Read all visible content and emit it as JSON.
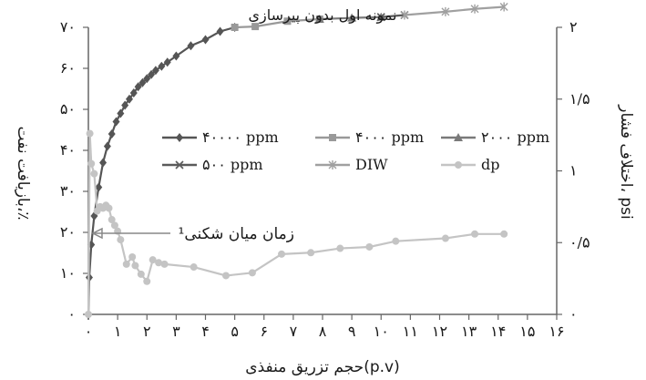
{
  "chart_data": {
    "type": "line",
    "title": "نمونه اول بدون پیرسازی",
    "xlabel": "حجم تزریق منفذی(p.v)",
    "ylabel_left": "بازیافت نفت،٪",
    "ylabel_right": "اختلاف فشار، psi",
    "x_range": [
      0,
      16
    ],
    "y_left_range": [
      0,
      70
    ],
    "y_right_range": [
      0,
      2
    ],
    "x_ticks": [
      "۰",
      "۱",
      "۲",
      "۳",
      "۴",
      "۵",
      "۶",
      "۷",
      "۸",
      "۹",
      "۱۰",
      "۱۱",
      "۱۲",
      "۱۳",
      "۱۴",
      "۱۵",
      "۱۶"
    ],
    "y_left_ticks": [
      "۰",
      "۱۰",
      "۲۰",
      "۳۰",
      "۴۰",
      "۵۰",
      "۶۰",
      "۷۰"
    ],
    "y_right_ticks": [
      "۰",
      "۰/۵",
      "۱",
      "۱/۵",
      "۲"
    ],
    "legend_position": "center",
    "annotation": {
      "text": "زمان میان شکنی¹",
      "x": 1.3,
      "y": 20
    },
    "series": [
      {
        "name": "۴۰۰۰۰ ppm",
        "axis": "left",
        "color": "#555555",
        "marker": "diamond",
        "x": [
          0,
          0.03,
          0.1,
          0.2,
          0.35,
          0.5,
          0.65,
          0.8,
          0.95,
          1.1,
          1.25,
          1.4,
          1.55,
          1.7,
          1.85,
          2.0,
          2.15,
          2.3,
          2.5,
          2.7,
          3.0,
          3.5,
          4.0,
          4.5,
          5.0
        ],
        "y": [
          0,
          9,
          17,
          24,
          31,
          37,
          41,
          44,
          47,
          49,
          51,
          52.5,
          54,
          55.5,
          56.5,
          57.5,
          58.5,
          59.5,
          60.5,
          61.5,
          63,
          65.5,
          67,
          69,
          70
        ]
      },
      {
        "name": "۴۰۰۰ ppm",
        "axis": "left",
        "color": "#999999",
        "marker": "square",
        "x": [
          5.0,
          5.7,
          6.8,
          7.9
        ],
        "y": [
          70,
          70.2,
          71.5,
          72
        ]
      },
      {
        "name": "۲۰۰۰ ppm",
        "axis": "left",
        "color": "#7a7a7a",
        "marker": "triangle",
        "x": [
          7.9,
          9.0,
          10.0
        ],
        "y": [
          72,
          72.3,
          72.5
        ]
      },
      {
        "name": "۵۰۰ ppm",
        "axis": "left",
        "color": "#5a5a5a",
        "marker": "x",
        "x": [
          10.0,
          10.8
        ],
        "y": [
          72.5,
          73
        ]
      },
      {
        "name": "DIW",
        "axis": "left",
        "color": "#a0a0a0",
        "marker": "star",
        "x": [
          10.8,
          12.2,
          13.2,
          14.2
        ],
        "y": [
          73,
          73.8,
          74.5,
          75
        ]
      },
      {
        "name": "dp",
        "axis": "right",
        "color": "#c4c4c4",
        "marker": "circle",
        "x": [
          0,
          0.05,
          0.1,
          0.2,
          0.3,
          0.4,
          0.5,
          0.6,
          0.7,
          0.8,
          0.9,
          1.0,
          1.1,
          1.3,
          1.5,
          1.6,
          1.8,
          2.0,
          2.2,
          2.4,
          2.6,
          3.6,
          4.7,
          5.6,
          6.6,
          7.6,
          8.6,
          9.6,
          10.5,
          12.2,
          13.2,
          14.2
        ],
        "y": [
          0,
          1.26,
          1.05,
          0.98,
          0.72,
          0.75,
          0.74,
          0.76,
          0.74,
          0.66,
          0.62,
          0.58,
          0.52,
          0.35,
          0.4,
          0.34,
          0.28,
          0.23,
          0.38,
          0.36,
          0.35,
          0.33,
          0.27,
          0.29,
          0.42,
          0.43,
          0.46,
          0.47,
          0.51,
          0.53,
          0.56,
          0.56
        ]
      }
    ]
  }
}
